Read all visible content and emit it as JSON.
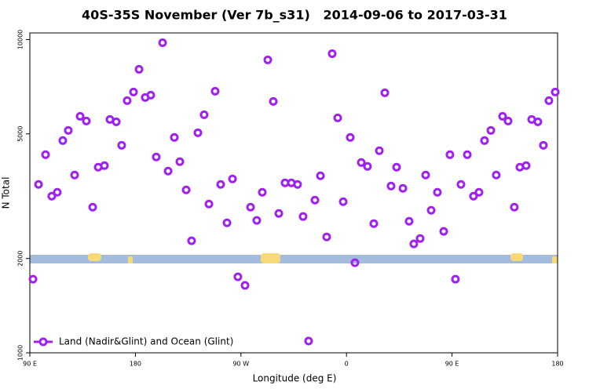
{
  "chart_data": {
    "type": "scatter",
    "title": "40S-35S November (Ver 7b_s31)   2014-09-06 to 2017-03-31",
    "xlabel": "Longitude (deg E)",
    "ylabel": "N Total",
    "xlim": [
      90,
      540
    ],
    "xticks": [
      {
        "value": 90,
        "label": "90 E"
      },
      180,
      {
        "value": 270,
        "label": "90 W"
      },
      {
        "value": 360,
        "label": "0"
      },
      {
        "value": 450,
        "label": "90 E"
      },
      {
        "value": 540,
        "label": "180"
      }
    ],
    "ylim": [
      1000,
      10500
    ],
    "yticks": [
      1000,
      2000,
      5000,
      10000
    ],
    "ylog": true,
    "legend": "lower left",
    "series": [
      {
        "name": "Land (Nadir&Glint) and Ocean (Glint)",
        "color": "#a020f0",
        "x": [
          92.7,
          97.4,
          103.4,
          108.7,
          113.4,
          118.1,
          122.8,
          128.2,
          132.9,
          138.2,
          143.6,
          148.3,
          153.6,
          158.3,
          163.7,
          168.3,
          173.0,
          178.4,
          183.1,
          188.4,
          193.1,
          197.8,
          203.2,
          207.9,
          213.2,
          217.9,
          223.3,
          227.9,
          233.3,
          238.6,
          242.7,
          248.0,
          252.7,
          258.1,
          262.8,
          267.4,
          273.5,
          278.2,
          283.5,
          288.2,
          292.9,
          297.6,
          302.3,
          307.6,
          313.0,
          318.3,
          323.0,
          327.7,
          333.1,
          337.8,
          343.1,
          347.8,
          352.5,
          357.2,
          363.2,
          367.2,
          372.6,
          377.9,
          383.3,
          388.0,
          392.7,
          398.0,
          402.7,
          408.1,
          413.4,
          417.4,
          422.8,
          427.5,
          432.2,
          437.5,
          442.9,
          448.2,
          452.9,
          457.6,
          463.0,
          468.3,
          473.0,
          477.7,
          483.1,
          487.7,
          493.1,
          497.8,
          503.1,
          507.8,
          513.2,
          517.9,
          523.2,
          527.9,
          532.6,
          538.0
        ],
        "values": [
          1718,
          3447,
          4290,
          3162,
          3254,
          4759,
          5129,
          3694,
          5689,
          5495,
          2917,
          3913,
          3959,
          5559,
          5464,
          4597,
          6383,
          6800,
          8035,
          6531,
          6646,
          4217,
          9772,
          3802,
          4870,
          4074,
          3311,
          2278,
          5041,
          5754,
          2985,
          6839,
          3447,
          2600,
          3589,
          1748,
          1641,
          2917,
          2646,
          3254,
          8610,
          6346,
          2786,
          3487,
          3487,
          3447,
          2723,
          1090,
          3073,
          3673,
          2344,
          9016,
          5623,
          3037,
          4870,
          1939,
          4050,
          3936,
          2585,
          4416,
          6761,
          3407,
          3913,
          3350,
          2630,
          2226,
          2317,
          3694,
          2851,
          3254,
          2441,
          4290,
          1718,
          3447,
          4290,
          3162,
          3254,
          4759,
          5129,
          3694,
          5689,
          5495,
          2917,
          3913,
          3959,
          5559,
          5464,
          4597,
          6383,
          6800
        ]
      }
    ]
  }
}
